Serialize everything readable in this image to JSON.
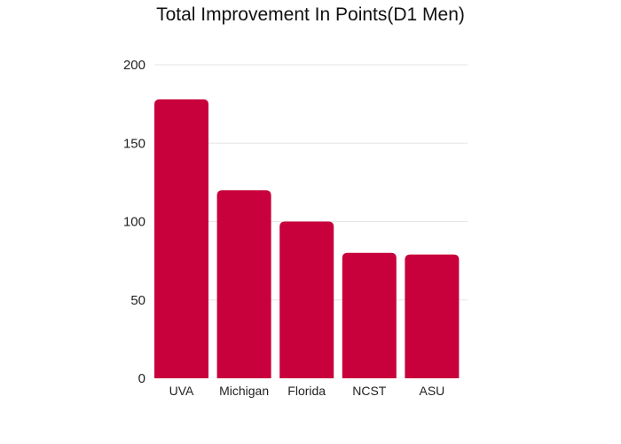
{
  "chart_data": {
    "type": "bar",
    "title": "Total Improvement In Points(D1 Men)",
    "xlabel": "",
    "ylabel": "",
    "categories": [
      "UVA",
      "Michigan",
      "Florida",
      "NCST",
      "ASU"
    ],
    "values": [
      178,
      120,
      100,
      80,
      79
    ],
    "ylim": [
      0,
      200
    ],
    "yticks": [
      0,
      50,
      100,
      150,
      200
    ],
    "grid": true,
    "bar_color": "#c8003c"
  }
}
